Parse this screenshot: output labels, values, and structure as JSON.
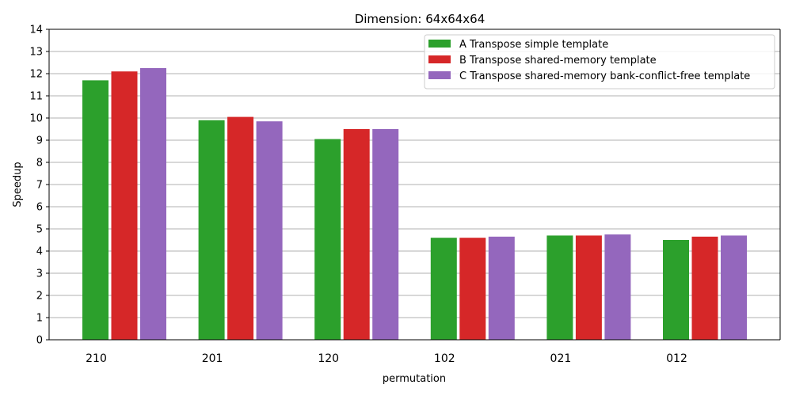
{
  "chart_data": {
    "type": "bar",
    "title": "Dimension: 64x64x64",
    "xlabel": "permutation",
    "ylabel": "Speedup",
    "ylim": [
      0,
      14
    ],
    "yticks": [
      0,
      1,
      2,
      3,
      4,
      5,
      6,
      7,
      8,
      9,
      10,
      11,
      12,
      13,
      14
    ],
    "grid": "y",
    "legend_position": "top-right",
    "categories": [
      "210",
      "201",
      "120",
      "102",
      "021",
      "012"
    ],
    "series": [
      {
        "name": "A Transpose simple template",
        "color": "#2ca02c",
        "values": [
          11.7,
          9.9,
          9.05,
          4.6,
          4.7,
          4.5
        ]
      },
      {
        "name": "B Transpose shared-memory template",
        "color": "#d62728",
        "values": [
          12.1,
          10.05,
          9.5,
          4.6,
          4.7,
          4.65
        ]
      },
      {
        "name": "C Transpose shared-memory bank-conflict-free template",
        "color": "#9467bd",
        "values": [
          12.25,
          9.85,
          9.5,
          4.65,
          4.75,
          4.7
        ]
      }
    ]
  }
}
